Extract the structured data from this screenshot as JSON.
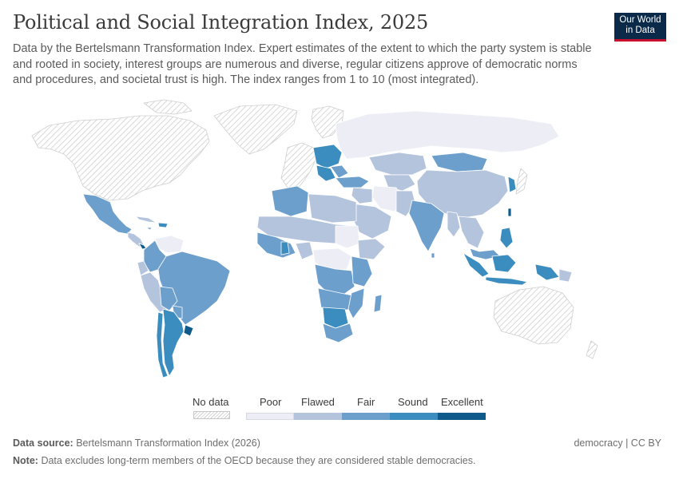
{
  "header": {
    "title": "Political and Social Integration Index, 2025",
    "subtitle": "Data by the Bertelsmann Transformation Index. Expert estimates of the extent to which the party system is stable and rooted in society, interest groups are numerous and diverse, regular citizens approve of democratic norms and procedures, and societal trust is high. The index ranges from 1 to 10 (most integrated)."
  },
  "logo": {
    "line1": "Our World",
    "line2": "in Data"
  },
  "legend": {
    "no_data": "No data",
    "categories": [
      "Poor",
      "Flawed",
      "Fair",
      "Sound",
      "Excellent"
    ]
  },
  "colors": {
    "no_data_hatch": "#cfcfcf",
    "poor": "#edeef5",
    "flawed": "#b4c4dd",
    "fair": "#6d9fcd",
    "sound": "#3b8cbf",
    "excellent": "#0e5a8a",
    "border": "#ffffff"
  },
  "footer": {
    "source_label": "Data source:",
    "source_text": "Bertelsmann Transformation Index (2026)",
    "license": "democracy | CC BY",
    "note_label": "Note:",
    "note_text": "Data excludes long-term members of the OECD because they are considered stable democracies."
  }
}
